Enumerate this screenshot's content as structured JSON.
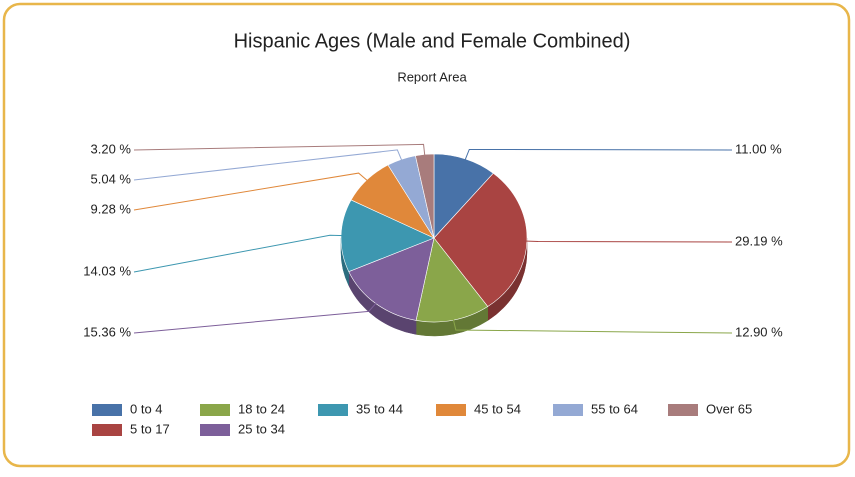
{
  "chart_data": {
    "type": "pie",
    "title": "Hispanic Ages (Male and Female Combined)",
    "subtitle": "Report Area",
    "categories": [
      "0 to 4",
      "5 to 17",
      "18 to 24",
      "25 to 34",
      "35 to 44",
      "45 to 54",
      "55 to 64",
      "Over 65"
    ],
    "values": [
      11.0,
      29.19,
      12.9,
      15.36,
      14.03,
      9.28,
      5.04,
      3.2
    ],
    "value_labels": [
      "11.00 %",
      "29.19 %",
      "12.90 %",
      "15.36 %",
      "14.03 %",
      "9.28 %",
      "5.04 %",
      "3.20 %"
    ],
    "colors": [
      "#4872a8",
      "#a94442",
      "#8aa64a",
      "#7d5f9a",
      "#3d97b0",
      "#e0883a",
      "#94a9d4",
      "#a87c7c"
    ],
    "legend": "bottom"
  }
}
